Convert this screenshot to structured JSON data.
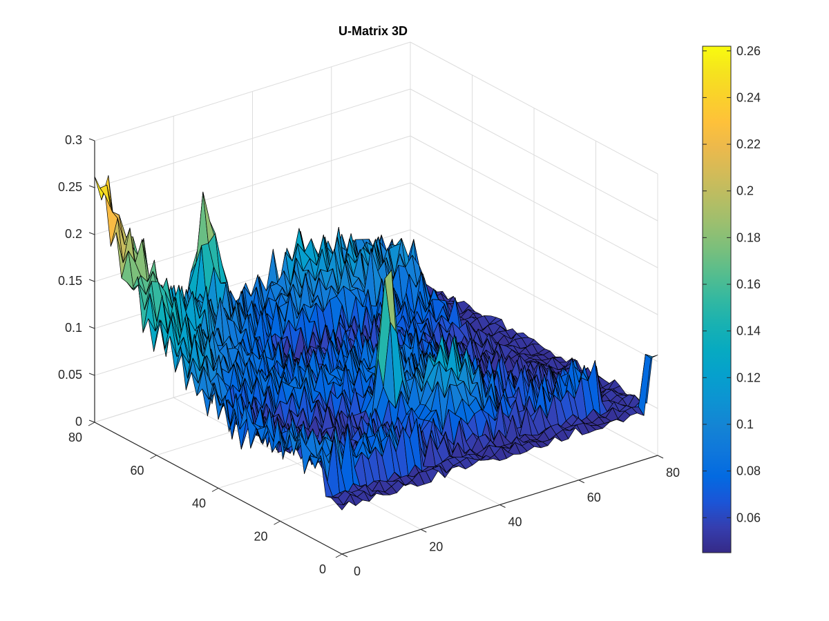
{
  "chart_data": {
    "type": "surface",
    "title": "U-Matrix 3D",
    "xlabel": "",
    "ylabel": "",
    "zlabel": "",
    "x_range": [
      0,
      80
    ],
    "y_range": [
      0,
      80
    ],
    "z_range": [
      0,
      0.3
    ],
    "x_ticks": [
      "0",
      "20",
      "40",
      "60",
      "80"
    ],
    "y_ticks": [
      "0",
      "20",
      "40",
      "60",
      "80"
    ],
    "z_ticks": [
      "0",
      "0.05",
      "0.1",
      "0.15",
      "0.2",
      "0.25",
      "0.3"
    ],
    "grid": true,
    "colormap": "parula",
    "colorbar": {
      "range": [
        0.045,
        0.262
      ],
      "ticks": [
        "0.06",
        "0.08",
        "0.1",
        "0.12",
        "0.14",
        "0.16",
        "0.18",
        "0.2",
        "0.22",
        "0.24",
        "0.26"
      ],
      "placement": "right"
    },
    "surface_summary": {
      "typical_z": [
        0.06,
        0.12
      ],
      "baseline_edges": 0.05,
      "peaks": [
        {
          "x": 1,
          "y": 79,
          "z": 0.25
        },
        {
          "x": 27,
          "y": 78,
          "z": 0.24
        },
        {
          "x": 32,
          "y": 26,
          "z": 0.24
        },
        {
          "x": 78,
          "y": 2,
          "z": 0.1
        }
      ]
    }
  }
}
